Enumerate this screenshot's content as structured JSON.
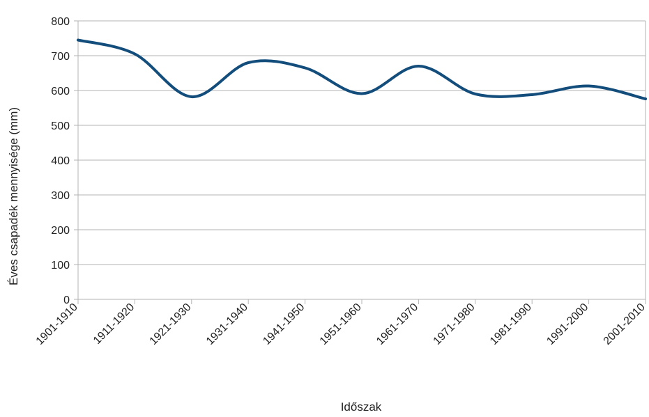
{
  "chart_data": {
    "type": "line",
    "title": "",
    "xlabel": "Időszak",
    "ylabel": "Éves csapadék mennyisége (mm)",
    "categories": [
      "1901-1910",
      "1911-1920",
      "1921-1930",
      "1931-1940",
      "1941-1950",
      "1951-1960",
      "1961-1970",
      "1971-1980",
      "1981-1990",
      "1991-2000",
      "2001-2010"
    ],
    "series": [
      {
        "values": [
          745,
          705,
          582,
          680,
          665,
          591,
          670,
          590,
          588,
          613,
          576
        ]
      }
    ],
    "ylim": [
      0,
      800
    ],
    "yticks": [
      "0",
      "100",
      "200",
      "300",
      "400",
      "500",
      "600",
      "700",
      "800"
    ],
    "grid": true,
    "smooth": true,
    "line_color": "#134d7c"
  }
}
